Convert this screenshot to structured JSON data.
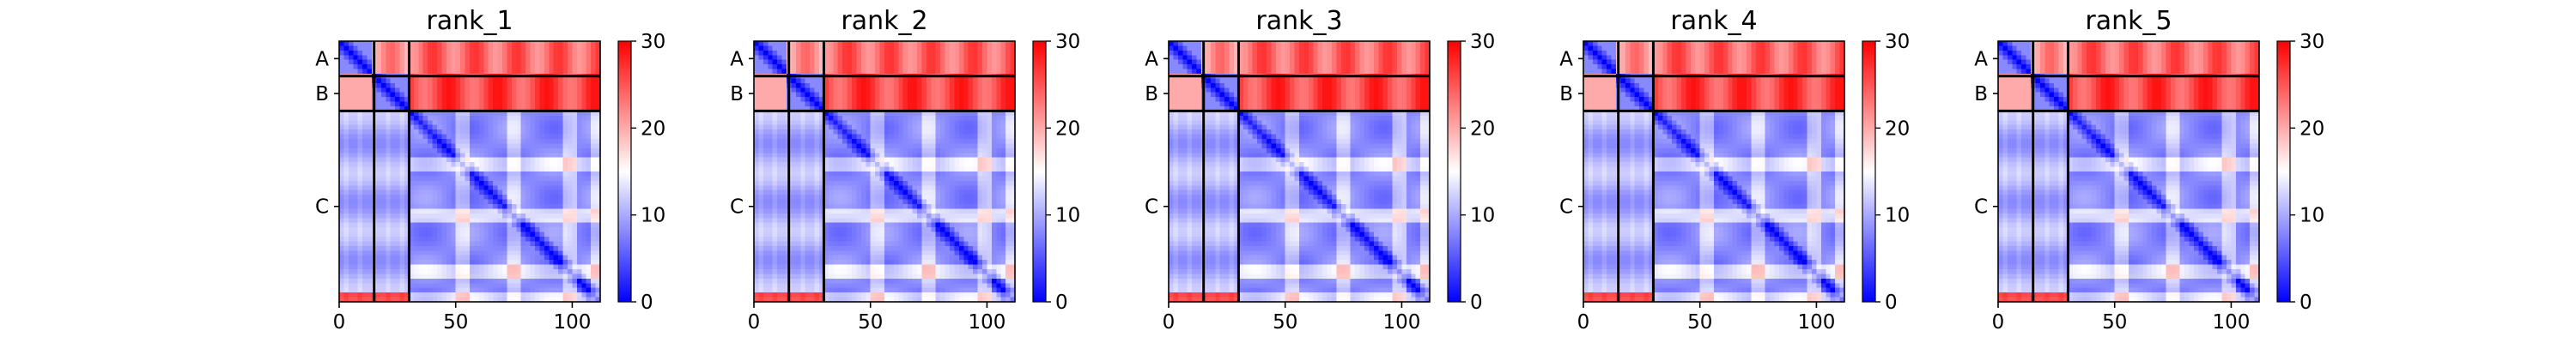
{
  "chart_data": {
    "type": "heatmap",
    "panels": [
      {
        "title": "rank_1",
        "chain_ends": [
          15,
          30,
          112
        ]
      },
      {
        "title": "rank_2",
        "chain_ends": [
          15,
          30,
          112
        ]
      },
      {
        "title": "rank_3",
        "chain_ends": [
          15,
          30,
          112
        ]
      },
      {
        "title": "rank_4",
        "chain_ends": [
          15,
          30,
          112
        ]
      },
      {
        "title": "rank_5",
        "chain_ends": [
          15,
          30,
          112
        ]
      }
    ],
    "chains": [
      "A",
      "B",
      "C"
    ],
    "x_ticks": [
      0,
      50,
      100
    ],
    "xlim": [
      0,
      112
    ],
    "colorbar": {
      "ticks": [
        0,
        10,
        20,
        30
      ],
      "vmin": 0,
      "vmax": 30,
      "cmap": [
        "#0000ff",
        "#ffffff",
        "#ff0000"
      ]
    },
    "value_model": {
      "intra_chain_diagonal": 0,
      "intra_chain_far": 8,
      "a_to_others": 24,
      "b_to_c": 26,
      "c_to_a_b": 10
    }
  }
}
